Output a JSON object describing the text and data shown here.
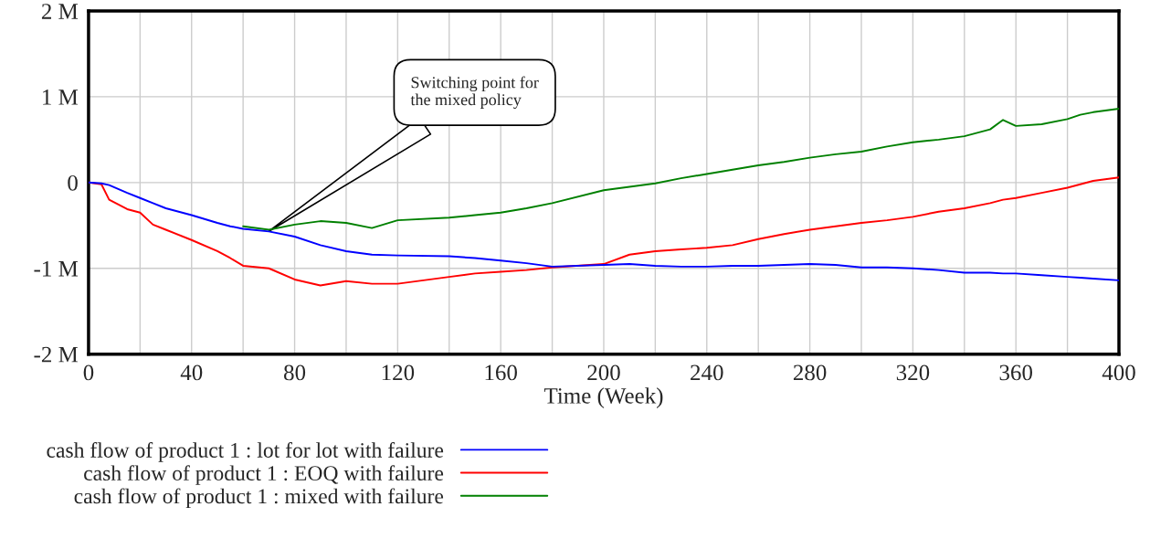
{
  "chart_data": {
    "type": "line",
    "xlabel": "Time (Week)",
    "x": [
      0,
      5,
      8,
      15,
      20,
      25,
      30,
      40,
      50,
      55,
      60,
      70,
      80,
      90,
      100,
      110,
      120,
      140,
      150,
      160,
      170,
      180,
      200,
      210,
      220,
      230,
      240,
      250,
      260,
      270,
      280,
      290,
      300,
      310,
      320,
      330,
      340,
      350,
      355,
      360,
      370,
      380,
      385,
      390,
      400
    ],
    "series": [
      {
        "name": "cash flow of product 1 : lot for lot with failure",
        "color": "#0000ff",
        "values": [
          0,
          -0.01,
          -0.03,
          -0.12,
          -0.18,
          -0.24,
          -0.3,
          -0.38,
          -0.47,
          -0.51,
          -0.54,
          -0.57,
          -0.63,
          -0.73,
          -0.8,
          -0.84,
          -0.85,
          -0.86,
          -0.88,
          -0.91,
          -0.94,
          -0.98,
          -0.96,
          -0.95,
          -0.97,
          -0.98,
          -0.98,
          -0.97,
          -0.97,
          -0.96,
          -0.95,
          -0.96,
          -0.99,
          -0.99,
          -1.0,
          -1.02,
          -1.05,
          -1.05,
          -1.06,
          -1.06,
          -1.08,
          -1.1,
          -1.11,
          -1.12,
          -1.14
        ]
      },
      {
        "name": "cash flow of product 1 : EOQ with failure",
        "color": "#ff0000",
        "values": [
          0,
          -0.02,
          -0.2,
          -0.31,
          -0.35,
          -0.49,
          -0.55,
          -0.67,
          -0.8,
          -0.88,
          -0.97,
          -1.0,
          -1.13,
          -1.2,
          -1.15,
          -1.18,
          -1.18,
          -1.1,
          -1.06,
          -1.04,
          -1.02,
          -0.99,
          -0.95,
          -0.84,
          -0.8,
          -0.78,
          -0.76,
          -0.73,
          -0.66,
          -0.6,
          -0.55,
          -0.51,
          -0.47,
          -0.44,
          -0.4,
          -0.34,
          -0.3,
          -0.24,
          -0.2,
          -0.18,
          -0.12,
          -0.06,
          -0.02,
          0.02,
          0.06
        ]
      },
      {
        "name": "cash flow of product 1 : mixed with failure",
        "color": "#008000",
        "values": [
          null,
          null,
          null,
          null,
          null,
          null,
          null,
          null,
          null,
          null,
          -0.51,
          -0.55,
          -0.49,
          -0.45,
          -0.47,
          -0.53,
          -0.44,
          -0.41,
          -0.38,
          -0.35,
          -0.3,
          -0.24,
          -0.09,
          -0.05,
          -0.01,
          0.05,
          0.1,
          0.15,
          0.2,
          0.24,
          0.29,
          0.33,
          0.36,
          0.42,
          0.47,
          0.5,
          0.54,
          0.62,
          0.73,
          0.66,
          0.68,
          0.74,
          0.79,
          0.82,
          0.86
        ]
      }
    ],
    "xlim": [
      0,
      400
    ],
    "xticks": [
      0,
      {
        "value": 20,
        "label": null
      },
      40,
      {
        "value": 60,
        "label": null
      },
      80,
      {
        "value": 100,
        "label": null
      },
      120,
      {
        "value": 140,
        "label": null
      },
      160,
      {
        "value": 180,
        "label": null
      },
      200,
      {
        "value": 220,
        "label": null
      },
      240,
      {
        "value": 260,
        "label": null
      },
      280,
      {
        "value": 300,
        "label": null
      },
      320,
      {
        "value": 340,
        "label": null
      },
      360,
      {
        "value": 380,
        "label": null
      },
      400
    ],
    "ylim": [
      -2,
      2
    ],
    "yticks": [
      {
        "value": -2,
        "label": "-2 M"
      },
      {
        "value": -1,
        "label": "-1 M"
      },
      0,
      {
        "value": 1,
        "label": "1 M"
      },
      {
        "value": 2,
        "label": "2 M"
      }
    ],
    "grid": true,
    "legend": "bottom",
    "line_style": "solid",
    "annotations": [
      "Switching point for\nthe mixed policy"
    ]
  }
}
